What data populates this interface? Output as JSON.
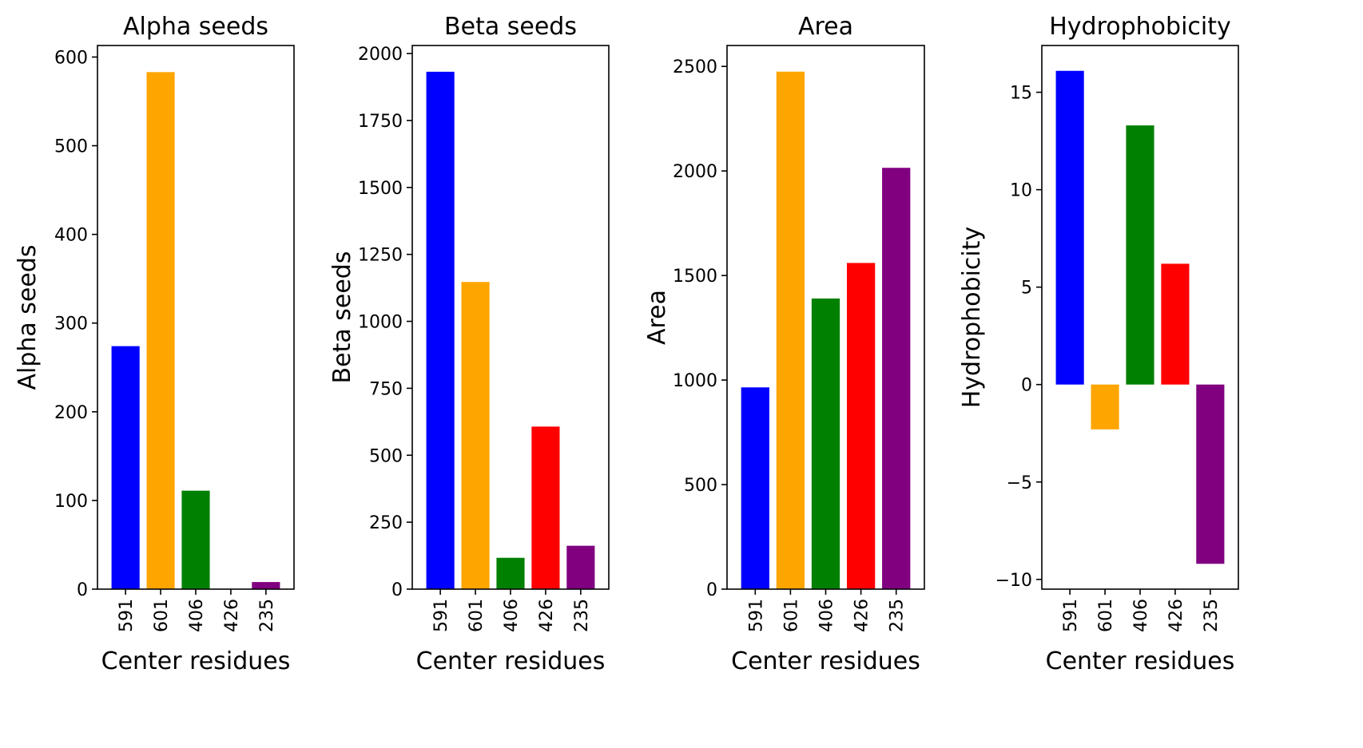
{
  "chart_data": [
    {
      "type": "bar",
      "title": "Alpha seeds",
      "xlabel": "Center residues",
      "ylabel": "Alpha seeds",
      "categories": [
        "591",
        "601",
        "406",
        "426",
        "235"
      ],
      "values": [
        274,
        583,
        111,
        0,
        8
      ],
      "colors": [
        "#0000ff",
        "#ffa500",
        "#008000",
        "#ff0000",
        "#800080"
      ],
      "ylim": [
        0,
        613
      ],
      "yticks": [
        0,
        100,
        200,
        300,
        400,
        500,
        600
      ],
      "ytick_labels": [
        "0",
        "100",
        "200",
        "300",
        "400",
        "500",
        "600"
      ]
    },
    {
      "type": "bar",
      "title": "Beta seeds",
      "xlabel": "Center residues",
      "ylabel": "Beta seeds",
      "categories": [
        "591",
        "601",
        "406",
        "426",
        "235"
      ],
      "values": [
        1932,
        1147,
        117,
        607,
        162
      ],
      "colors": [
        "#0000ff",
        "#ffa500",
        "#008000",
        "#ff0000",
        "#800080"
      ],
      "ylim": [
        0,
        2030
      ],
      "yticks": [
        0,
        250,
        500,
        750,
        1000,
        1250,
        1500,
        1750,
        2000
      ],
      "ytick_labels": [
        "0",
        "250",
        "500",
        "750",
        "1000",
        "1250",
        "1500",
        "1750",
        "2000"
      ]
    },
    {
      "type": "bar",
      "title": "Area",
      "xlabel": "Center residues",
      "ylabel": "Area",
      "categories": [
        "591",
        "601",
        "406",
        "426",
        "235"
      ],
      "values": [
        965,
        2475,
        1390,
        1560,
        2015
      ],
      "colors": [
        "#0000ff",
        "#ffa500",
        "#008000",
        "#ff0000",
        "#800080"
      ],
      "ylim": [
        0,
        2600
      ],
      "yticks": [
        0,
        500,
        1000,
        1500,
        2000,
        2500
      ],
      "ytick_labels": [
        "0",
        "500",
        "1000",
        "1500",
        "2000",
        "2500"
      ]
    },
    {
      "type": "bar",
      "title": "Hydrophobicity",
      "xlabel": "Center residues",
      "ylabel": "Hydrophobicity",
      "categories": [
        "591",
        "601",
        "406",
        "426",
        "235"
      ],
      "values": [
        16.1,
        -2.3,
        13.3,
        6.2,
        -9.2
      ],
      "colors": [
        "#0000ff",
        "#ffa500",
        "#008000",
        "#ff0000",
        "#800080"
      ],
      "ylim": [
        -10.5,
        17.4
      ],
      "yticks": [
        -10,
        -5,
        0,
        5,
        10,
        15
      ],
      "ytick_labels": [
        "−10",
        "−5",
        "0",
        "5",
        "10",
        "15"
      ]
    }
  ]
}
